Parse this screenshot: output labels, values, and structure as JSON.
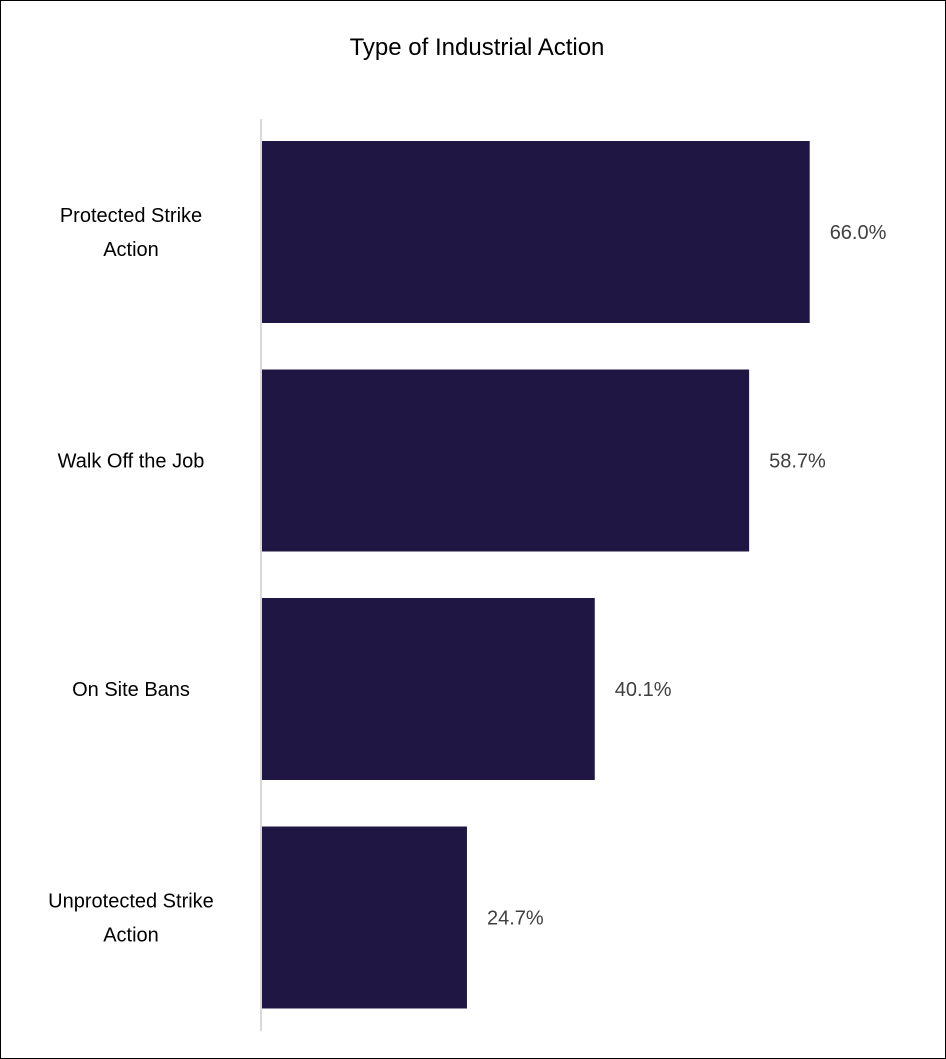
{
  "chart_data": {
    "type": "bar",
    "orientation": "horizontal",
    "title": "Type of Industrial Action",
    "categories": [
      [
        "Protected Strike",
        "Action"
      ],
      [
        "Walk Off the Job"
      ],
      [
        "On Site Bans"
      ],
      [
        "Unprotected Strike",
        "Action"
      ]
    ],
    "values": [
      66.0,
      58.7,
      40.1,
      24.7
    ],
    "value_labels": [
      "66.0%",
      "58.7%",
      "40.1%",
      "24.7%"
    ],
    "unit": "%",
    "xlim": [
      0,
      71.7
    ],
    "grid": false,
    "legend": "none",
    "colors": {
      "bar": "#201644",
      "axis": "#d9d9d9",
      "value_text": "#404040"
    }
  }
}
